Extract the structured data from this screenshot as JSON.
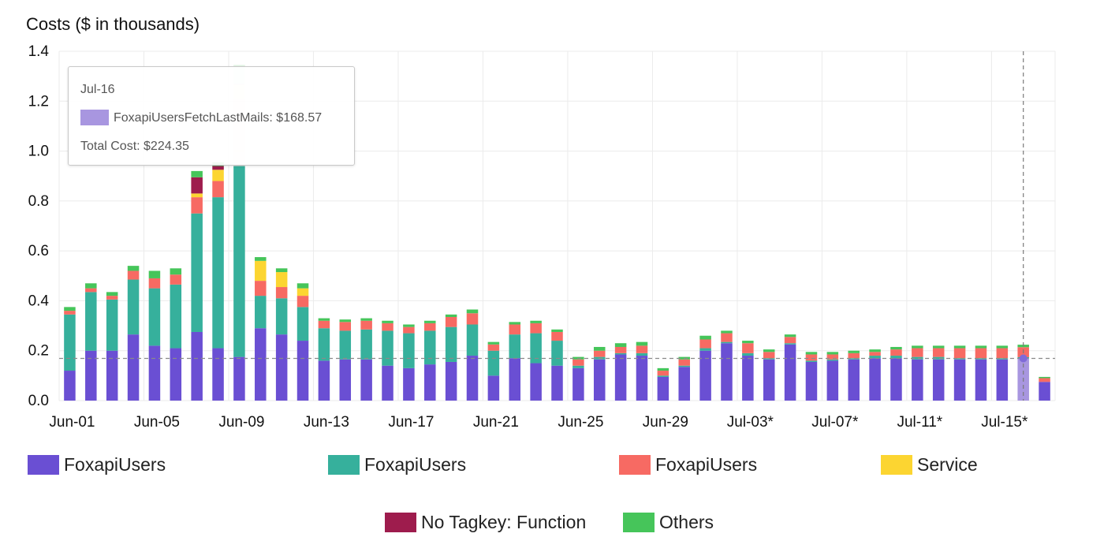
{
  "chart_data": {
    "type": "bar",
    "stacked": true,
    "title": "Costs ($ in thousands)",
    "ylim": [
      0,
      1.4
    ],
    "yticks": [
      "0.0",
      "0.2",
      "0.4",
      "0.6",
      "0.8",
      "1.0",
      "1.2",
      "1.4"
    ],
    "ytick_values": [
      0,
      0.2,
      0.4,
      0.6,
      0.8,
      1.0,
      1.2,
      1.4
    ],
    "grid": true,
    "legend_position": "bottom",
    "categories": [
      "Jun-01",
      "Jun-02",
      "Jun-03",
      "Jun-04",
      "Jun-05",
      "Jun-06",
      "Jun-07",
      "Jun-08",
      "Jun-09",
      "Jun-10",
      "Jun-11",
      "Jun-12",
      "Jun-13",
      "Jun-14",
      "Jun-15",
      "Jun-16",
      "Jun-17",
      "Jun-18",
      "Jun-19",
      "Jun-20",
      "Jun-21",
      "Jun-22",
      "Jun-23",
      "Jun-24",
      "Jun-25",
      "Jun-26",
      "Jun-27",
      "Jun-28",
      "Jun-29",
      "Jun-30",
      "Jul-01",
      "Jul-02",
      "Jul-03*",
      "Jul-04",
      "Jul-05",
      "Jul-06",
      "Jul-07*",
      "Jul-08",
      "Jul-09",
      "Jul-10",
      "Jul-11*",
      "Jul-12",
      "Jul-13",
      "Jul-14",
      "Jul-15*",
      "Jul-16",
      "Jul-17"
    ],
    "xtick_labels": [
      "Jun-01",
      "Jun-05",
      "Jun-09",
      "Jun-13",
      "Jun-17",
      "Jun-21",
      "Jun-25",
      "Jun-29",
      "Jul-03*",
      "Jul-07*",
      "Jul-11*",
      "Jul-15*"
    ],
    "series": [
      {
        "name": "FoxapiUsers",
        "color": "#6a4fd3",
        "values": [
          0.12,
          0.2,
          0.2,
          0.265,
          0.22,
          0.21,
          0.275,
          0.21,
          0.175,
          0.29,
          0.265,
          0.24,
          0.16,
          0.165,
          0.165,
          0.14,
          0.13,
          0.145,
          0.155,
          0.18,
          0.1,
          0.17,
          0.15,
          0.14,
          0.13,
          0.165,
          0.185,
          0.18,
          0.095,
          0.135,
          0.2,
          0.23,
          0.18,
          0.165,
          0.225,
          0.155,
          0.16,
          0.165,
          0.17,
          0.17,
          0.165,
          0.165,
          0.165,
          0.165,
          0.165,
          0.169,
          0.075
        ]
      },
      {
        "name": "FoxapiUsers",
        "color": "#36b09c",
        "values": [
          0.225,
          0.235,
          0.205,
          0.22,
          0.23,
          0.255,
          0.475,
          0.605,
          0.765,
          0.13,
          0.145,
          0.135,
          0.13,
          0.115,
          0.12,
          0.14,
          0.14,
          0.135,
          0.14,
          0.125,
          0.1,
          0.095,
          0.12,
          0.1,
          0.01,
          0.01,
          0.005,
          0.01,
          0.005,
          0.005,
          0.01,
          0.005,
          0.01,
          0.005,
          0.005,
          0.005,
          0.005,
          0.005,
          0.01,
          0.01,
          0.01,
          0.01,
          0.005,
          0.005,
          0.005,
          0.005,
          0
        ]
      },
      {
        "name": "FoxapiUsers",
        "color": "#f76a63",
        "values": [
          0.015,
          0.015,
          0.015,
          0.035,
          0.04,
          0.04,
          0.065,
          0.065,
          0.27,
          0.06,
          0.045,
          0.045,
          0.03,
          0.035,
          0.035,
          0.03,
          0.025,
          0.03,
          0.04,
          0.045,
          0.025,
          0.04,
          0.04,
          0.035,
          0.025,
          0.025,
          0.025,
          0.03,
          0.02,
          0.025,
          0.035,
          0.035,
          0.04,
          0.025,
          0.025,
          0.025,
          0.02,
          0.02,
          0.015,
          0.025,
          0.035,
          0.035,
          0.04,
          0.04,
          0.04,
          0.04,
          0.015
        ]
      },
      {
        "name": "Service",
        "color": "#fcd531",
        "values": [
          0,
          0,
          0,
          0,
          0,
          0,
          0.015,
          0.045,
          0.055,
          0.08,
          0.06,
          0.03,
          0,
          0,
          0,
          0,
          0,
          0,
          0,
          0,
          0,
          0,
          0,
          0,
          0,
          0,
          0,
          0,
          0,
          0,
          0,
          0,
          0,
          0,
          0,
          0,
          0,
          0,
          0,
          0,
          0,
          0,
          0,
          0,
          0,
          0,
          0
        ]
      },
      {
        "name": "No Tagkey: Function",
        "color": "#9e1c4d",
        "values": [
          0,
          0,
          0,
          0,
          0,
          0,
          0.065,
          0.015,
          0.005,
          0,
          0,
          0,
          0,
          0,
          0,
          0,
          0,
          0,
          0,
          0,
          0,
          0,
          0,
          0,
          0,
          0,
          0,
          0,
          0,
          0,
          0,
          0,
          0,
          0,
          0,
          0,
          0,
          0,
          0,
          0,
          0,
          0,
          0,
          0,
          0,
          0,
          0
        ]
      },
      {
        "name": "Others",
        "color": "#46c55a",
        "values": [
          0.015,
          0.02,
          0.015,
          0.02,
          0.03,
          0.025,
          0.025,
          0.015,
          0.075,
          0.015,
          0.015,
          0.02,
          0.01,
          0.01,
          0.01,
          0.01,
          0.01,
          0.01,
          0.01,
          0.015,
          0.01,
          0.01,
          0.01,
          0.01,
          0.01,
          0.015,
          0.015,
          0.015,
          0.01,
          0.01,
          0.015,
          0.01,
          0.01,
          0.01,
          0.01,
          0.01,
          0.01,
          0.01,
          0.01,
          0.01,
          0.01,
          0.01,
          0.01,
          0.01,
          0.01,
          0.01,
          0.005
        ]
      }
    ],
    "reference_line": 0.169,
    "highlighted_category": "Jul-16",
    "highlight_color": "#a896e0",
    "tooltip": {
      "date": "Jul-16",
      "series_label": "FoxapiUsersFetchLastMails: $168.57",
      "swatch_color": "#a896e0",
      "total": "Total Cost: $224.35"
    }
  }
}
